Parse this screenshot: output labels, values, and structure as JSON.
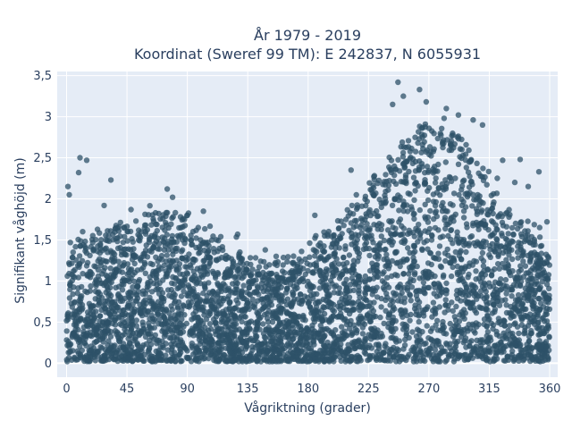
{
  "chart_data": {
    "type": "scatter",
    "title_line1": "År 1979 - 2019",
    "title_line2": "Koordinat (Sweref 99 TM): E 242837, N 6055931",
    "xlabel": "Vågriktning (grader)",
    "ylabel": "Signifikant våghöjd (m)",
    "xlim": [
      -7,
      366
    ],
    "ylim": [
      -0.17,
      3.55
    ],
    "xticks": [
      0,
      45,
      90,
      135,
      180,
      225,
      270,
      315,
      360
    ],
    "xtick_labels": [
      "0",
      "45",
      "90",
      "135",
      "180",
      "225",
      "270",
      "315",
      "360"
    ],
    "yticks": [
      0,
      0.5,
      1,
      1.5,
      2,
      2.5,
      3,
      3.5
    ],
    "ytick_labels": [
      "0",
      "0,5",
      "1",
      "1,5",
      "2",
      "2,5",
      "3",
      "3,5"
    ],
    "grid": true,
    "marker_color": "#2e5168",
    "plot_background": "#e5ecf6",
    "envelope": {
      "direction": [
        0,
        10,
        20,
        30,
        40,
        50,
        60,
        70,
        80,
        90,
        100,
        110,
        120,
        130,
        140,
        150,
        160,
        170,
        180,
        190,
        200,
        210,
        220,
        230,
        240,
        250,
        260,
        270,
        280,
        290,
        300,
        310,
        320,
        330,
        340,
        350,
        360
      ],
      "max_height": [
        1.3,
        1.35,
        1.4,
        1.45,
        1.5,
        1.55,
        1.6,
        1.65,
        1.7,
        1.6,
        1.5,
        1.4,
        1.3,
        1.2,
        1.15,
        1.1,
        1.1,
        1.15,
        1.2,
        1.35,
        1.5,
        1.65,
        1.85,
        2.05,
        2.25,
        2.45,
        2.6,
        2.7,
        2.7,
        2.65,
        2.5,
        2.2,
        1.9,
        1.6,
        1.45,
        1.35,
        1.3
      ]
    },
    "outliers": [
      {
        "x": 1,
        "y": 2.15
      },
      {
        "x": 2,
        "y": 2.05
      },
      {
        "x": 10,
        "y": 2.5
      },
      {
        "x": 15,
        "y": 2.47
      },
      {
        "x": 9,
        "y": 2.32
      },
      {
        "x": 33,
        "y": 2.23
      },
      {
        "x": 28,
        "y": 1.92
      },
      {
        "x": 48,
        "y": 1.87
      },
      {
        "x": 75,
        "y": 2.12
      },
      {
        "x": 79,
        "y": 2.02
      },
      {
        "x": 90,
        "y": 1.8
      },
      {
        "x": 102,
        "y": 1.85
      },
      {
        "x": 185,
        "y": 1.8
      },
      {
        "x": 212,
        "y": 2.35
      },
      {
        "x": 229,
        "y": 2.27
      },
      {
        "x": 247,
        "y": 3.42
      },
      {
        "x": 243,
        "y": 3.15
      },
      {
        "x": 251,
        "y": 3.25
      },
      {
        "x": 263,
        "y": 3.33
      },
      {
        "x": 268,
        "y": 3.18
      },
      {
        "x": 283,
        "y": 3.1
      },
      {
        "x": 292,
        "y": 3.02
      },
      {
        "x": 303,
        "y": 2.96
      },
      {
        "x": 310,
        "y": 2.9
      },
      {
        "x": 325,
        "y": 2.47
      },
      {
        "x": 338,
        "y": 2.48
      },
      {
        "x": 352,
        "y": 2.33
      },
      {
        "x": 321,
        "y": 2.25
      },
      {
        "x": 334,
        "y": 2.2
      },
      {
        "x": 344,
        "y": 2.15
      },
      {
        "x": 358,
        "y": 1.72
      }
    ]
  }
}
